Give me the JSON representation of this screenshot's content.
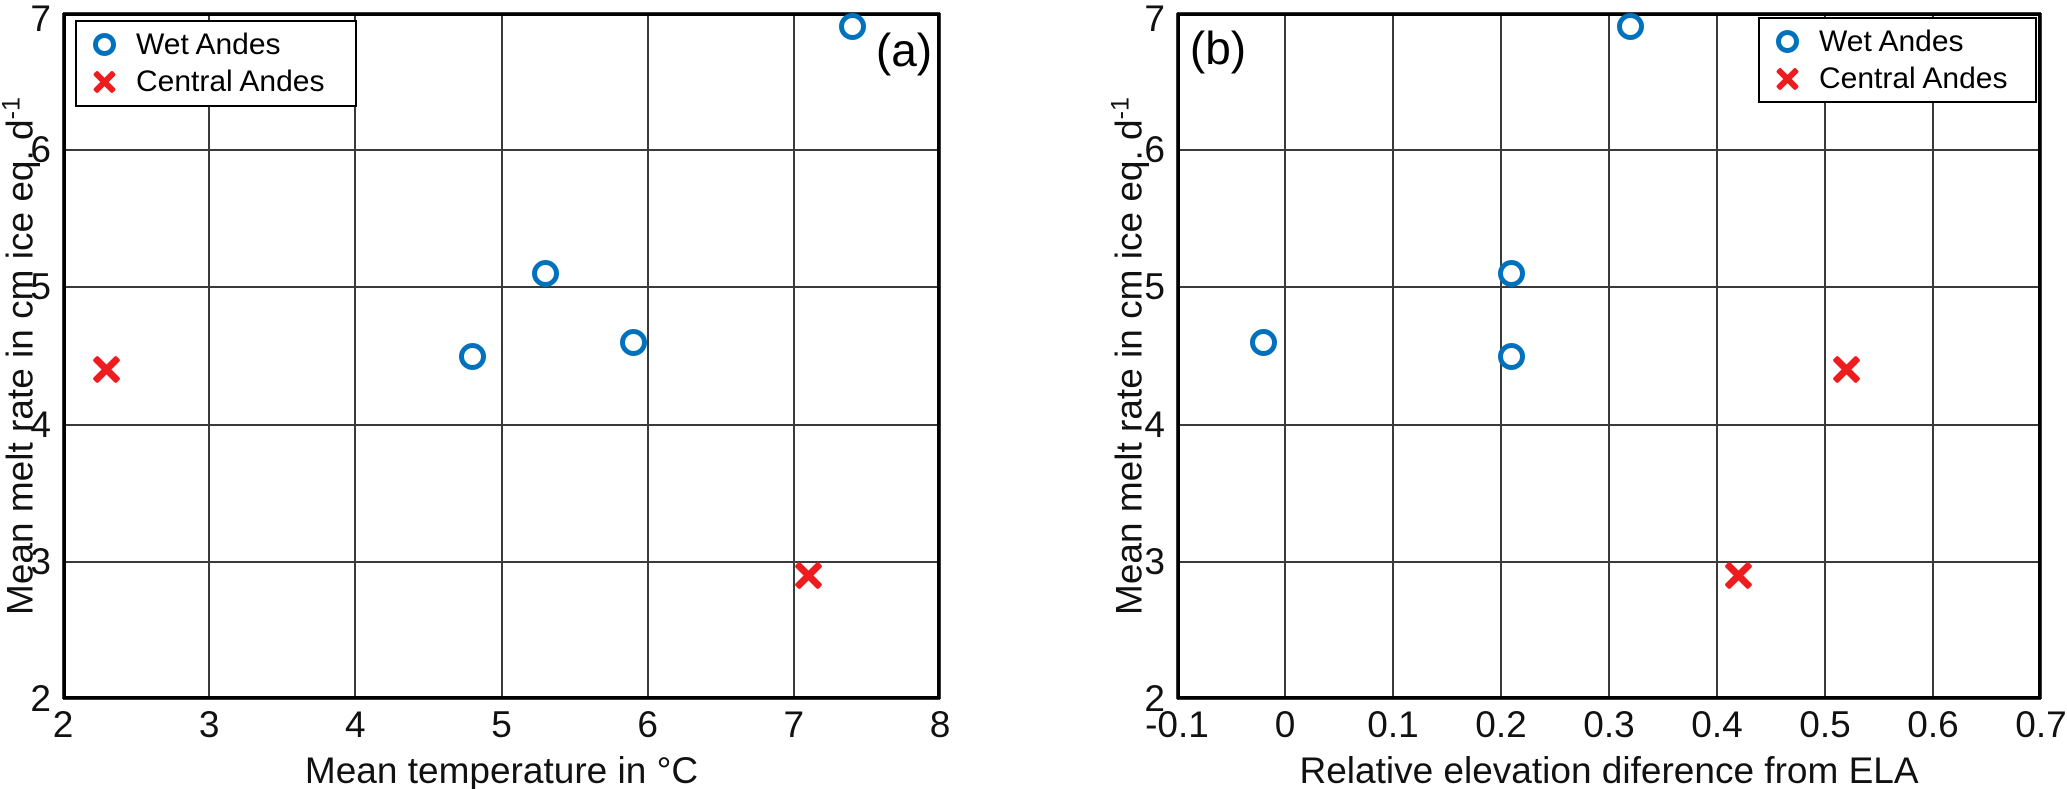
{
  "figure": {
    "background": "#ffffff",
    "text_color": "#111111",
    "grid_color": "#3a3a3a"
  },
  "chart_data": [
    {
      "type": "scatter",
      "panel_label": "(a)",
      "xlabel": "Mean temperature in °C",
      "ylabel": "Mean melt rate in cm ice eq. d",
      "ylabel_superscript": "-1",
      "xlim": [
        2,
        8
      ],
      "ylim": [
        2,
        7
      ],
      "xticks": [
        2,
        3,
        4,
        5,
        6,
        7,
        8
      ],
      "xtick_labels": [
        "2",
        "3",
        "4",
        "5",
        "6",
        "7",
        "8"
      ],
      "yticks": [
        2,
        3,
        4,
        5,
        6,
        7
      ],
      "ytick_labels": [
        "2",
        "3",
        "4",
        "5",
        "6",
        "7"
      ],
      "grid": true,
      "legend_position": "top-left",
      "series": [
        {
          "name": "Wet Andes",
          "marker": "circle",
          "color": "#0072BD",
          "points": [
            [
              4.8,
              4.5
            ],
            [
              5.3,
              5.1
            ],
            [
              5.9,
              4.6
            ],
            [
              7.4,
              6.9
            ]
          ]
        },
        {
          "name": "Central Andes",
          "marker": "x",
          "color": "#ED1C1E",
          "points": [
            [
              2.3,
              4.4
            ],
            [
              7.1,
              2.9
            ]
          ]
        }
      ]
    },
    {
      "type": "scatter",
      "panel_label": "(b)",
      "xlabel": "Relative elevation diference from ELA",
      "ylabel": "Mean melt rate in cm ice eq. d",
      "ylabel_superscript": "-1",
      "xlim": [
        -0.1,
        0.7
      ],
      "ylim": [
        2,
        7
      ],
      "xticks": [
        -0.1,
        0,
        0.1,
        0.2,
        0.3,
        0.4,
        0.5,
        0.6,
        0.7
      ],
      "xtick_labels": [
        "-0.1",
        "0",
        "0.1",
        "0.2",
        "0.3",
        "0.4",
        "0.5",
        "0.6",
        "0.7"
      ],
      "yticks": [
        2,
        3,
        4,
        5,
        6,
        7
      ],
      "ytick_labels": [
        "2",
        "3",
        "4",
        "5",
        "6",
        "7"
      ],
      "grid": true,
      "legend_position": "top-right",
      "series": [
        {
          "name": "Wet Andes",
          "marker": "circle",
          "color": "#0072BD",
          "points": [
            [
              -0.02,
              4.6
            ],
            [
              0.21,
              5.1
            ],
            [
              0.21,
              4.5
            ],
            [
              0.32,
              6.9
            ]
          ]
        },
        {
          "name": "Central Andes",
          "marker": "x",
          "color": "#ED1C1E",
          "points": [
            [
              0.42,
              2.9
            ],
            [
              0.52,
              4.4
            ]
          ]
        }
      ]
    }
  ]
}
